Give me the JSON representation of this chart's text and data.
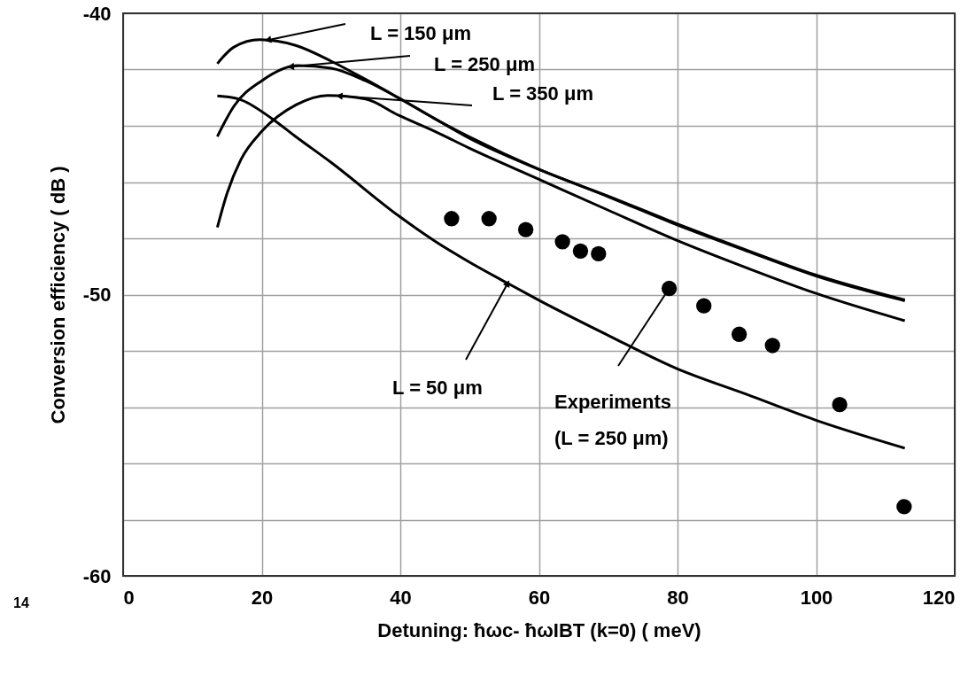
{
  "chart_data": {
    "type": "line",
    "xlabel": "Detuning: ħωc- ħωIBT (k=0) ( meV)",
    "ylabel": "Conversion efficiency ( dB )",
    "xlim": [
      0,
      120
    ],
    "ylim": [
      -60,
      -40
    ],
    "xticks": [
      0,
      20,
      40,
      60,
      80,
      100,
      120
    ],
    "yticks": [
      -60,
      {
        "value": -58,
        "label": null
      },
      {
        "value": -56,
        "label": null
      },
      {
        "value": -54,
        "label": null
      },
      {
        "value": -52,
        "label": null
      },
      -50,
      {
        "value": -48,
        "label": null
      },
      {
        "value": -46,
        "label": null
      },
      {
        "value": -44,
        "label": null
      },
      {
        "value": -42,
        "label": null
      },
      -40
    ],
    "grid": true,
    "line_style": "solid",
    "series": [
      {
        "color": "#000000",
        "x": [
          13.6,
          16,
          19.7,
          25,
          30,
          35,
          39.7,
          45,
          50,
          60,
          70,
          79.7,
          90,
          99.9,
          112.8
        ],
        "values": [
          -41.79,
          -41.2,
          -40.94,
          -41.15,
          -41.7,
          -42.35,
          -43.0,
          -43.75,
          -44.4,
          -45.55,
          -46.5,
          -47.46,
          -48.42,
          -49.3,
          -50.19
        ]
      },
      {
        "color": "#000000",
        "x": [
          13.6,
          16,
          20,
          25.2,
          30,
          35,
          39.7,
          45,
          50,
          60,
          70,
          79.7,
          90,
          99.9,
          112.8
        ],
        "values": [
          -44.38,
          -43.3,
          -42.4,
          -41.86,
          -41.95,
          -42.4,
          -43.0,
          -43.75,
          -44.45,
          -45.55,
          -46.52,
          -47.5,
          -48.45,
          -49.33,
          -50.22
        ]
      },
      {
        "color": "#000000",
        "x": [
          13.6,
          15,
          17,
          20,
          25,
          29.5,
          35,
          39.7,
          45,
          50,
          60,
          70,
          79.7,
          90,
          99.9,
          112.8
        ],
        "values": [
          -47.61,
          -46.4,
          -45.2,
          -44.2,
          -43.25,
          -42.92,
          -43.05,
          -43.62,
          -44.2,
          -44.8,
          -45.9,
          -47.0,
          -48.05,
          -49.05,
          -49.95,
          -50.93
        ]
      },
      {
        "color": "#000000",
        "x": [
          13.6,
          16.7,
          21.4,
          25,
          30,
          39.7,
          45,
          50,
          55.5,
          60,
          70,
          79.7,
          90,
          99.9,
          112.8
        ],
        "values": [
          -42.94,
          -43.05,
          -43.73,
          -44.4,
          -45.3,
          -47.19,
          -48.1,
          -48.85,
          -49.6,
          -50.2,
          -51.45,
          -52.61,
          -53.55,
          -54.46,
          -55.46
        ]
      },
      {
        "type": "scatter",
        "marker": "circle",
        "color": "#000000",
        "x": [
          47.4,
          52.8,
          58.1,
          63.4,
          66.0,
          68.6,
          78.8,
          83.8,
          88.9,
          93.7,
          103.4,
          112.7
        ],
        "values": [
          -47.3,
          -47.3,
          -47.69,
          -48.12,
          -48.45,
          -48.55,
          -49.78,
          -50.4,
          -51.41,
          -51.81,
          -53.91,
          -57.54
        ]
      }
    ],
    "annotations": [
      {
        "text": "L = 150 μm",
        "x": 20.9,
        "y": -40.95
      },
      {
        "text": "L = 250 μm",
        "x": 24.2,
        "y": -41.9
      },
      {
        "text": "L = 350 μm",
        "x": 31.2,
        "y": -42.94
      },
      {
        "text": "L = 50 μm",
        "x": 55.5,
        "y": -49.6
      },
      {
        "text": "Experiments\n(L = 250 μm)",
        "x": 78.8,
        "y": -49.78
      },
      "14"
    ]
  }
}
